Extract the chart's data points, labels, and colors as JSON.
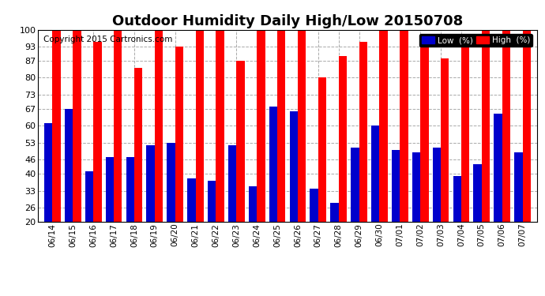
{
  "title": "Outdoor Humidity Daily High/Low 20150708",
  "copyright": "Copyright 2015 Cartronics.com",
  "dates": [
    "06/14",
    "06/15",
    "06/16",
    "06/17",
    "06/18",
    "06/19",
    "06/20",
    "06/21",
    "06/22",
    "06/23",
    "06/24",
    "06/25",
    "06/26",
    "06/27",
    "06/28",
    "06/29",
    "06/30",
    "07/01",
    "07/02",
    "07/03",
    "07/04",
    "07/05",
    "07/06",
    "07/07"
  ],
  "high": [
    100,
    100,
    95,
    100,
    84,
    100,
    93,
    100,
    100,
    87,
    100,
    100,
    100,
    80,
    89,
    95,
    100,
    100,
    93,
    88,
    93,
    100,
    100,
    100
  ],
  "low": [
    61,
    67,
    41,
    47,
    47,
    52,
    53,
    38,
    37,
    52,
    35,
    68,
    66,
    34,
    28,
    51,
    60,
    50,
    49,
    51,
    39,
    44,
    65,
    49
  ],
  "high_color": "#ff0000",
  "low_color": "#0000cc",
  "bg_color": "#ffffff",
  "grid_color": "#aaaaaa",
  "ylim": [
    20,
    100
  ],
  "yticks": [
    20,
    26,
    33,
    40,
    46,
    53,
    60,
    67,
    73,
    80,
    87,
    93,
    100
  ],
  "title_fontsize": 13,
  "copyright_fontsize": 7.5,
  "legend_low_label": "Low  (%)",
  "legend_high_label": "High  (%)"
}
